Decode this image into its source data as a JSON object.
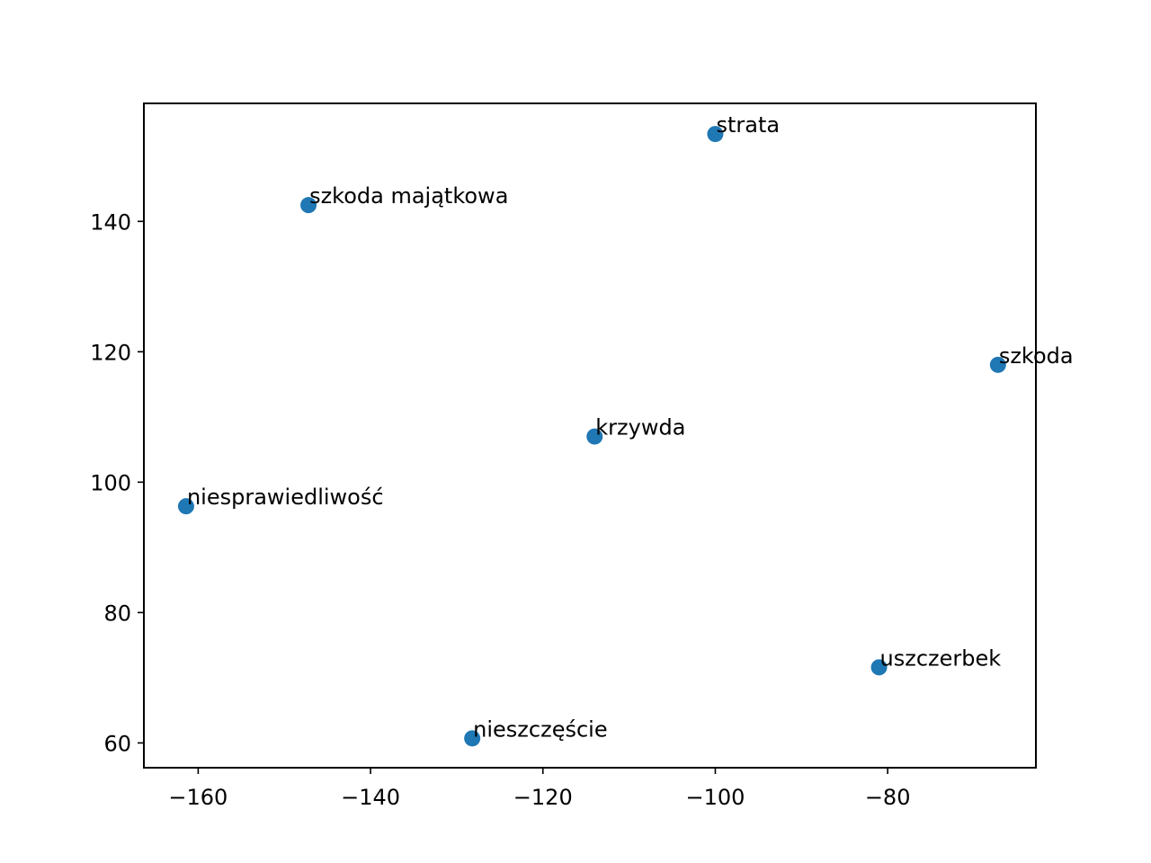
{
  "chart_data": {
    "type": "scatter",
    "title": "",
    "xlabel": "",
    "ylabel": "",
    "xlim": [
      -166.3,
      -62.8
    ],
    "ylim": [
      56.2,
      158.1
    ],
    "x_ticks": [
      -160,
      -140,
      -120,
      -100,
      -80
    ],
    "x_tick_labels": [
      "−160",
      "−140",
      "−120",
      "−100",
      "−80"
    ],
    "y_ticks": [
      60,
      80,
      100,
      120,
      140
    ],
    "y_tick_labels": [
      "60",
      "80",
      "100",
      "120",
      "140"
    ],
    "grid": false,
    "marker_color": "#1f77b4",
    "points": [
      {
        "label": "strata",
        "x": -100.0,
        "y": 153.4
      },
      {
        "label": "szkoda majątkowa",
        "x": -147.2,
        "y": 142.5
      },
      {
        "label": "szkoda",
        "x": -67.2,
        "y": 118.0
      },
      {
        "label": "krzywda",
        "x": -114.0,
        "y": 107.0
      },
      {
        "label": "niesprawiedliwość",
        "x": -161.4,
        "y": 96.3
      },
      {
        "label": "uszczerbek",
        "x": -81.0,
        "y": 71.6
      },
      {
        "label": "nieszczęście",
        "x": -128.2,
        "y": 60.7
      }
    ]
  }
}
